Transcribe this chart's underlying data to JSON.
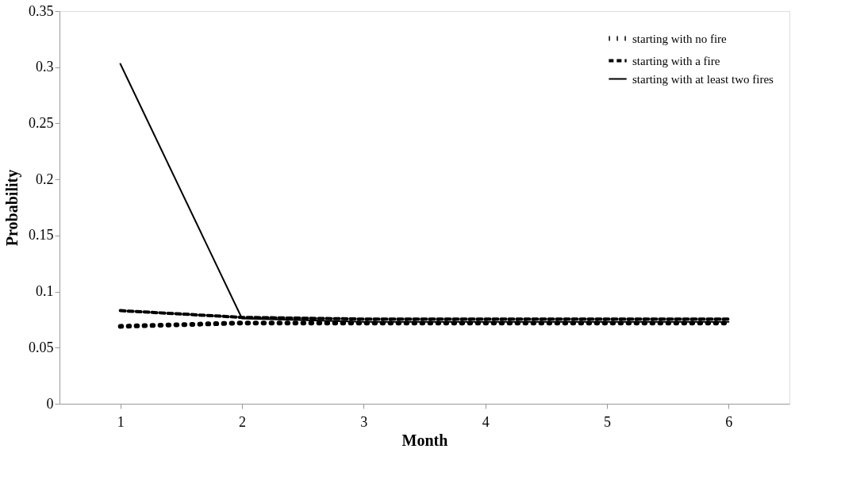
{
  "chart_data": {
    "type": "line",
    "xlabel": "Month",
    "ylabel": "Probability",
    "categories": [
      "1",
      "2",
      "3",
      "4",
      "5",
      "6"
    ],
    "ylim": [
      0,
      0.35
    ],
    "yticks": [
      0,
      0.05,
      0.1,
      0.15,
      0.2,
      0.25,
      0.3,
      0.35
    ],
    "grid": false,
    "legend": "top right",
    "marker": "none",
    "series": [
      {
        "name": "starting with no fire",
        "color": "#000000",
        "line_style": "dotted",
        "values": [
          0.069,
          0.072,
          0.072,
          0.072,
          0.072,
          0.072
        ]
      },
      {
        "name": "starting with a fire",
        "color": "#000000",
        "line_style": "dashed",
        "values": [
          0.083,
          0.077,
          0.0755,
          0.0755,
          0.0755,
          0.0755
        ]
      },
      {
        "name": "starting with at least two fires",
        "color": "#000000",
        "line_style": "solid",
        "values": [
          0.303,
          0.076,
          0.073,
          0.073,
          0.073,
          0.073
        ]
      }
    ]
  }
}
